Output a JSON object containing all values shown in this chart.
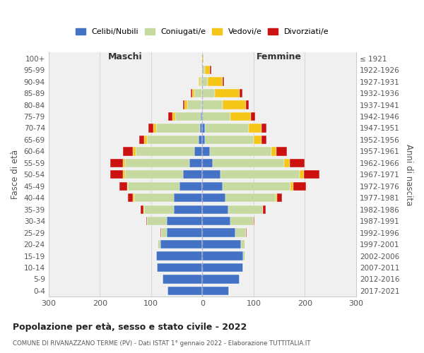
{
  "age_groups": [
    "0-4",
    "5-9",
    "10-14",
    "15-19",
    "20-24",
    "25-29",
    "30-34",
    "35-39",
    "40-44",
    "45-49",
    "50-54",
    "55-59",
    "60-64",
    "65-69",
    "70-74",
    "75-79",
    "80-84",
    "85-89",
    "90-94",
    "95-99",
    "100+"
  ],
  "birth_years": [
    "2017-2021",
    "2012-2016",
    "2007-2011",
    "2002-2006",
    "1997-2001",
    "1992-1996",
    "1987-1991",
    "1982-1986",
    "1977-1981",
    "1972-1976",
    "1967-1971",
    "1962-1966",
    "1957-1961",
    "1952-1956",
    "1947-1951",
    "1942-1946",
    "1937-1941",
    "1932-1936",
    "1927-1931",
    "1922-1926",
    "≤ 1921"
  ],
  "colors": {
    "celibi": "#4472c4",
    "coniugati": "#c5d9a0",
    "vedovi": "#f5c518",
    "divorziati": "#cc1111"
  },
  "males": {
    "celibi": [
      68,
      78,
      88,
      90,
      82,
      70,
      70,
      55,
      55,
      45,
      38,
      25,
      15,
      8,
      5,
      3,
      2,
      0,
      0,
      0,
      0
    ],
    "coniugati": [
      0,
      0,
      0,
      0,
      5,
      10,
      38,
      58,
      78,
      100,
      112,
      125,
      115,
      100,
      85,
      50,
      28,
      15,
      5,
      2,
      0
    ],
    "vedovi": [
      0,
      0,
      0,
      0,
      0,
      0,
      0,
      2,
      2,
      2,
      5,
      5,
      5,
      5,
      5,
      5,
      5,
      5,
      2,
      0,
      0
    ],
    "divorziati": [
      0,
      0,
      0,
      0,
      0,
      2,
      2,
      5,
      10,
      15,
      25,
      25,
      20,
      10,
      10,
      8,
      3,
      2,
      0,
      0,
      0
    ]
  },
  "females": {
    "celibi": [
      52,
      72,
      80,
      80,
      75,
      65,
      55,
      50,
      45,
      40,
      35,
      20,
      15,
      5,
      5,
      0,
      0,
      0,
      0,
      0,
      0
    ],
    "coniugati": [
      0,
      0,
      0,
      3,
      8,
      20,
      45,
      68,
      98,
      132,
      155,
      140,
      120,
      95,
      85,
      55,
      40,
      25,
      10,
      5,
      0
    ],
    "vedovi": [
      0,
      0,
      0,
      0,
      0,
      0,
      0,
      0,
      3,
      5,
      8,
      10,
      10,
      15,
      25,
      40,
      45,
      48,
      30,
      10,
      2
    ],
    "divorziati": [
      0,
      0,
      0,
      0,
      0,
      2,
      2,
      5,
      10,
      25,
      30,
      30,
      20,
      10,
      10,
      8,
      5,
      5,
      2,
      2,
      0
    ]
  },
  "title": "Popolazione per età, sesso e stato civile - 2022",
  "subtitle": "COMUNE DI RIVANAZZANO TERME (PV) - Dati ISTAT 1° gennaio 2022 - Elaborazione TUTTITALIA.IT",
  "xlabel_left": "Maschi",
  "xlabel_right": "Femmine",
  "ylabel_left": "Fasce di età",
  "ylabel_right": "Anni di nascita",
  "xlim": 300,
  "legend_labels": [
    "Celibi/Nubili",
    "Coniugati/e",
    "Vedovi/e",
    "Divorziati/e"
  ],
  "background_color": "#ffffff",
  "plot_bg_color": "#f0f0f0"
}
